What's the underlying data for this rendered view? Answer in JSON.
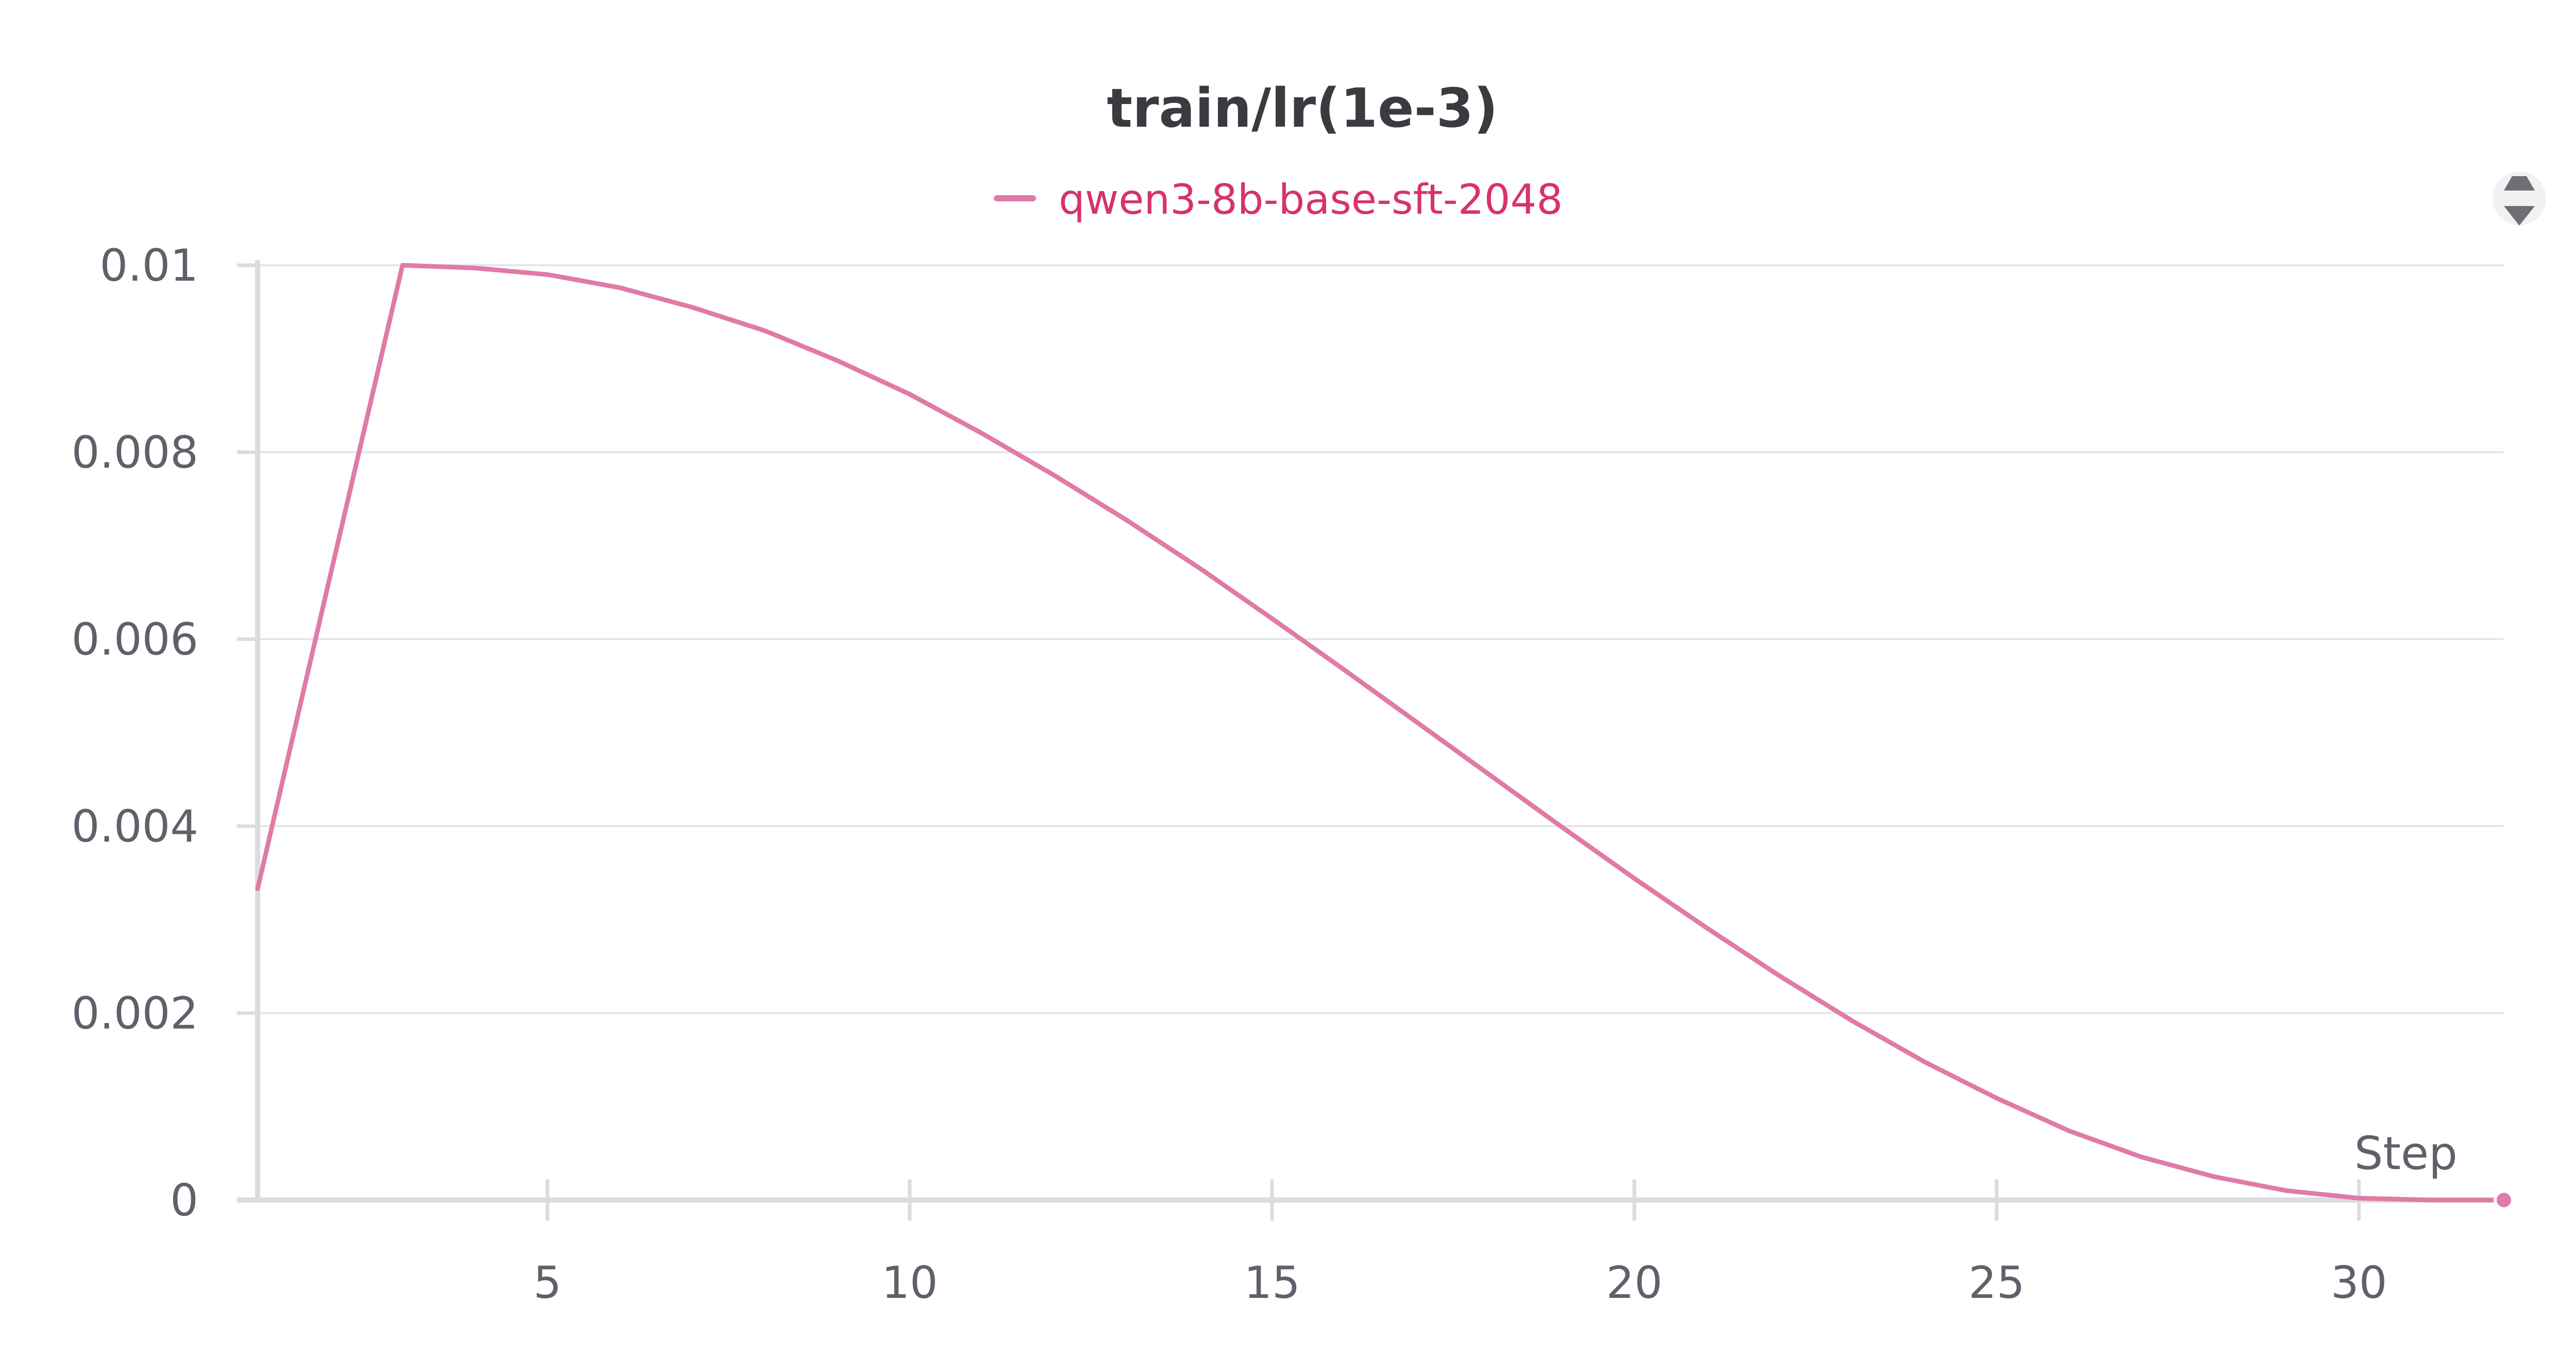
{
  "chart_data": {
    "type": "line",
    "title": "train/lr(1e-3)",
    "xlabel": "Step",
    "ylabel": "",
    "xlim": [
      1,
      32
    ],
    "ylim": [
      0,
      0.01
    ],
    "x_ticks": [
      5,
      10,
      15,
      20,
      25,
      30
    ],
    "y_ticks": [
      0,
      0.002,
      0.004,
      0.006,
      0.008,
      0.01
    ],
    "x_tick_labels": [
      "5",
      "10",
      "15",
      "20",
      "25",
      "30"
    ],
    "y_tick_labels": [
      "0",
      "0.002",
      "0.004",
      "0.006",
      "0.008",
      "0.01"
    ],
    "grid": true,
    "legend_position": "top-center",
    "series": [
      {
        "name": "qwen3-8b-base-sft-2048",
        "color": "#e07aa6",
        "x": [
          1,
          2,
          3,
          4,
          5,
          6,
          7,
          8,
          9,
          10,
          11,
          12,
          13,
          14,
          15,
          16,
          17,
          18,
          19,
          20,
          21,
          22,
          23,
          24,
          25,
          26,
          27,
          28,
          29,
          30,
          31,
          32
        ],
        "values": [
          0.00333,
          0.00667,
          0.01,
          0.00997,
          0.0099,
          0.00976,
          0.00955,
          0.0093,
          0.00898,
          0.00862,
          0.0082,
          0.00775,
          0.00727,
          0.00676,
          0.00622,
          0.00567,
          0.00511,
          0.00455,
          0.00399,
          0.00344,
          0.00291,
          0.0024,
          0.00192,
          0.00148,
          0.00109,
          0.00074,
          0.00046,
          0.00025,
          0.0001,
          2e-05,
          0.0,
          0.0
        ]
      }
    ]
  },
  "legend_color": "#e07aa6",
  "legend_text_color": "#d6336c",
  "menu_icon": "sort-arrows-icon"
}
